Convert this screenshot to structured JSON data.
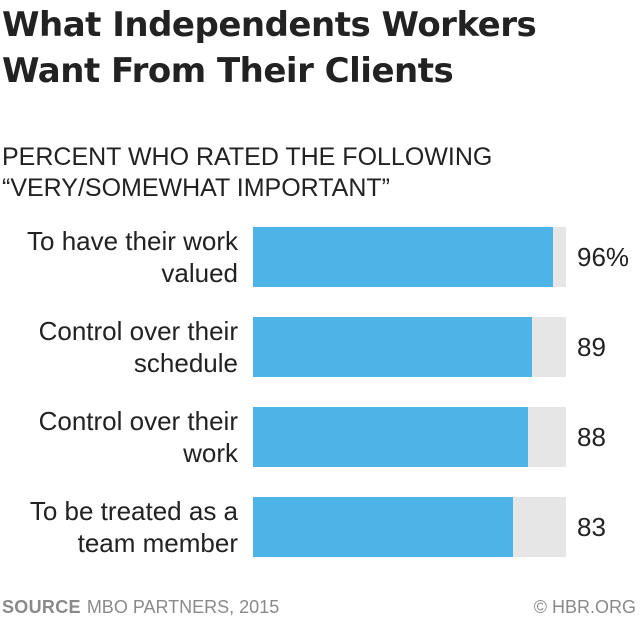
{
  "title": "What Independents Workers Want From Their Clients",
  "subtitle": "PERCENT WHO RATED THE FOLLOWING “VERY/SOMEWHAT IMPORTANT”",
  "footer": {
    "source_label": "SOURCE",
    "source_text": "MBO PARTNERS, 2015",
    "credit": "© HBR.ORG"
  },
  "colors": {
    "bar": "#4eb3e6",
    "track": "#e6e6e6",
    "text": "#222222",
    "footer": "#8a8a8a"
  },
  "chart_data": {
    "type": "bar",
    "orientation": "horizontal",
    "title": "What Independents Workers Want From Their Clients",
    "subtitle": "PERCENT WHO RATED THE FOLLOWING “VERY/SOMEWHAT IMPORTANT”",
    "categories": [
      "To have their work valued",
      "Control over their schedule",
      "Control over their work",
      "To be treated as a team member"
    ],
    "values": [
      96,
      89,
      88,
      83
    ],
    "value_labels": [
      "96%",
      "89",
      "88",
      "83"
    ],
    "xlim": [
      0,
      100
    ],
    "xlabel": "",
    "ylabel": "",
    "grid": false,
    "legend": "none"
  }
}
